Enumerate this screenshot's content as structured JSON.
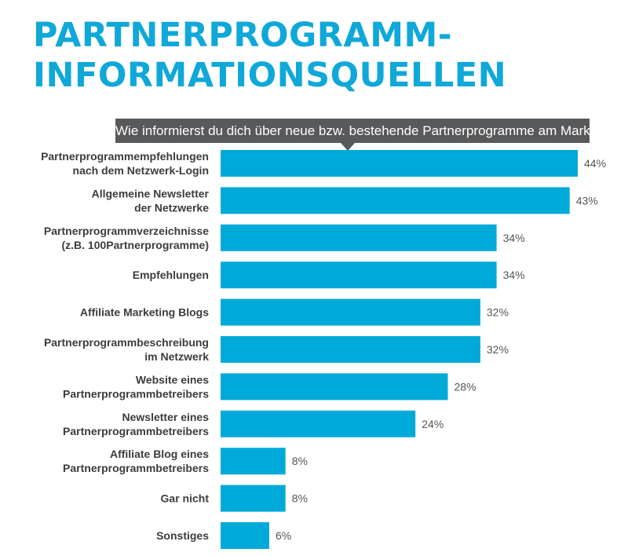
{
  "title_lines": [
    "PARTNERPROGRAMM-",
    "INFORMATIONSQUELLEN"
  ],
  "question": "Wie informierst du dich über neue bzw. bestehende Partnerprogramme am Markt?",
  "colors": {
    "accent": "#0fa8d8",
    "bar": "#00aad8",
    "question_bg": "#58595b"
  },
  "chart_data": {
    "type": "bar",
    "orientation": "horizontal",
    "categories": [
      [
        "Partnerprogrammempfehlungen",
        "nach dem Netzwerk-Login"
      ],
      [
        "Allgemeine Newsletter",
        "der Netzwerke"
      ],
      [
        "Partnerprogrammverzeichnisse",
        "(z.B. 100Partnerprogramme)"
      ],
      [
        "Empfehlungen"
      ],
      [
        "Affiliate Marketing Blogs"
      ],
      [
        "Partnerprogrammbeschreibung",
        "im Netzwerk"
      ],
      [
        "Website eines",
        "Partnerprogrammbetreibers"
      ],
      [
        "Newsletter eines",
        "Partnerprogrammbetreibers"
      ],
      [
        "Affiliate Blog eines",
        "Partnerprogrammbetreibers"
      ],
      [
        "Gar nicht"
      ],
      [
        "Sonstiges"
      ]
    ],
    "values": [
      44,
      43,
      34,
      34,
      32,
      32,
      28,
      24,
      8,
      8,
      6
    ],
    "value_labels": [
      "44%",
      "43%",
      "34%",
      "34%",
      "32%",
      "32%",
      "28%",
      "24%",
      "8%",
      "8%",
      "6%"
    ],
    "unit": "%",
    "grid": false,
    "legend": "none"
  }
}
